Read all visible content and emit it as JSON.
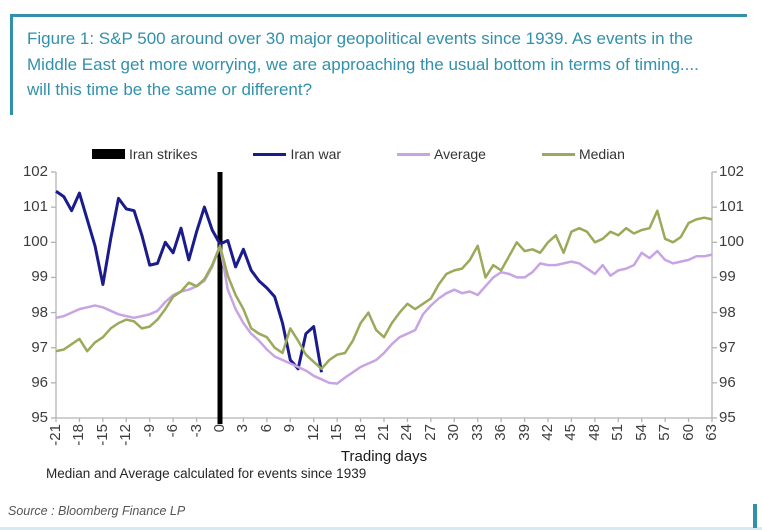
{
  "figure": {
    "title": "Figure 1: S&P 500 around over 30 major geopolitical events since 1939. As events in the Middle East get more worrying, we are approaching the usual bottom in terms of timing.... will this time be the same or different?"
  },
  "colors": {
    "accent_teal": "#3191ab",
    "axis_line": "#b3b3b3",
    "tick_text": "#3d3d3d",
    "iran_war": "#1b1c8c",
    "average": "#c8a5e2",
    "median": "#9aaa5a",
    "event_bar": "#000000"
  },
  "chart_data": {
    "type": "line",
    "xlabel": "Trading days",
    "ylabel": "",
    "xlim": [
      -21,
      63
    ],
    "ylim": [
      95,
      102
    ],
    "xticks": [
      -21,
      -18,
      -15,
      -12,
      -9,
      -6,
      -3,
      0,
      3,
      6,
      9,
      12,
      15,
      18,
      21,
      24,
      27,
      30,
      33,
      36,
      39,
      42,
      45,
      48,
      51,
      54,
      57,
      60,
      63
    ],
    "yticks": [
      95,
      96,
      97,
      98,
      99,
      100,
      101,
      102
    ],
    "grid": false,
    "legend_position": "top",
    "dual_y_axis": true,
    "event_bar": {
      "label": "Iran strikes",
      "x": 0,
      "color": "#000000"
    },
    "x": [
      -21,
      -20,
      -19,
      -18,
      -17,
      -16,
      -15,
      -14,
      -13,
      -12,
      -11,
      -10,
      -9,
      -8,
      -7,
      -6,
      -5,
      -4,
      -3,
      -2,
      -1,
      0,
      1,
      2,
      3,
      4,
      5,
      6,
      7,
      8,
      9,
      10,
      11,
      12,
      13,
      14,
      15,
      16,
      17,
      18,
      19,
      20,
      21,
      22,
      23,
      24,
      25,
      26,
      27,
      28,
      29,
      30,
      31,
      32,
      33,
      34,
      35,
      36,
      37,
      38,
      39,
      40,
      41,
      42,
      43,
      44,
      45,
      46,
      47,
      48,
      49,
      50,
      51,
      52,
      53,
      54,
      55,
      56,
      57,
      58,
      59,
      60,
      61,
      62,
      63
    ],
    "series": [
      {
        "name": "Iran war",
        "color": "#1b1c8c",
        "width": 3,
        "x_range": [
          -21,
          13
        ],
        "values": [
          101.45,
          101.3,
          100.9,
          101.4,
          100.65,
          99.9,
          98.8,
          100.1,
          101.25,
          100.95,
          100.9,
          100.2,
          99.35,
          99.4,
          100.0,
          99.7,
          100.4,
          99.5,
          100.3,
          101.0,
          100.35,
          99.95,
          100.05,
          99.3,
          99.8,
          99.2,
          98.9,
          98.7,
          98.45,
          97.7,
          96.65,
          96.4,
          97.4,
          97.6,
          96.3
        ]
      },
      {
        "name": "Average",
        "color": "#c8a5e2",
        "width": 2.5,
        "x_range": [
          -21,
          63
        ],
        "values": [
          97.85,
          97.9,
          98.0,
          98.1,
          98.15,
          98.2,
          98.15,
          98.05,
          97.95,
          97.9,
          97.85,
          97.9,
          97.95,
          98.05,
          98.3,
          98.5,
          98.6,
          98.65,
          98.75,
          98.9,
          99.3,
          99.9,
          98.65,
          98.1,
          97.7,
          97.4,
          97.2,
          96.95,
          96.75,
          96.65,
          96.55,
          96.45,
          96.35,
          96.2,
          96.1,
          96.0,
          95.98,
          96.15,
          96.3,
          96.45,
          96.55,
          96.65,
          96.85,
          97.1,
          97.3,
          97.4,
          97.5,
          97.95,
          98.2,
          98.4,
          98.55,
          98.65,
          98.55,
          98.6,
          98.5,
          98.75,
          99.0,
          99.15,
          99.1,
          99.0,
          99.0,
          99.15,
          99.4,
          99.35,
          99.35,
          99.4,
          99.45,
          99.4,
          99.25,
          99.1,
          99.35,
          99.05,
          99.2,
          99.25,
          99.35,
          99.7,
          99.55,
          99.75,
          99.5,
          99.4,
          99.45,
          99.5,
          99.6,
          99.6,
          99.65
        ]
      },
      {
        "name": "Median",
        "color": "#9aaa5a",
        "width": 2.5,
        "x_range": [
          -21,
          63
        ],
        "values": [
          96.9,
          96.95,
          97.1,
          97.25,
          96.9,
          97.15,
          97.3,
          97.55,
          97.7,
          97.8,
          97.75,
          97.55,
          97.6,
          97.8,
          98.1,
          98.45,
          98.6,
          98.85,
          98.75,
          98.95,
          99.35,
          99.9,
          99.05,
          98.5,
          98.1,
          97.55,
          97.4,
          97.3,
          97.0,
          96.85,
          97.55,
          97.2,
          96.8,
          96.6,
          96.4,
          96.65,
          96.8,
          96.85,
          97.2,
          97.7,
          98.0,
          97.5,
          97.3,
          97.7,
          98.0,
          98.25,
          98.1,
          98.25,
          98.4,
          98.8,
          99.1,
          99.2,
          99.25,
          99.5,
          99.9,
          99.0,
          99.35,
          99.2,
          99.6,
          100.0,
          99.75,
          99.8,
          99.7,
          100.0,
          100.2,
          99.7,
          100.3,
          100.4,
          100.3,
          100.0,
          100.1,
          100.3,
          100.2,
          100.4,
          100.25,
          100.35,
          100.4,
          100.9,
          100.1,
          100.0,
          100.15,
          100.55,
          100.65,
          100.7,
          100.65
        ]
      }
    ],
    "footnote": "Median and Average calculated for events since 1939"
  },
  "source": {
    "text": "Source : Bloomberg Finance LP"
  }
}
